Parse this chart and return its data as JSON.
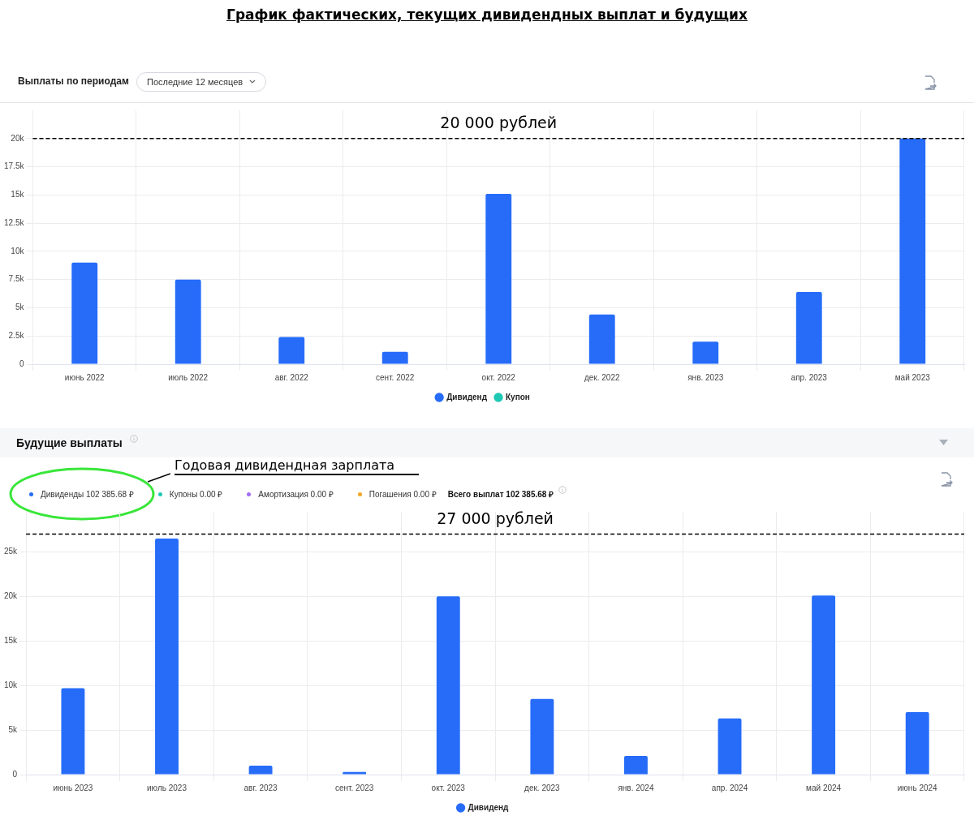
{
  "chart_data": [
    {
      "type": "bar",
      "title": "График фактических, текущих дивидендных выплат и будущих",
      "subtitle": "Выплаты по периодам",
      "annotations": [
        "Последние 12 месяцев"
      ],
      "categories": [
        "июнь 2022",
        "июль 2022",
        "авг. 2022",
        "сент. 2022",
        "окт. 2022",
        "дек. 2022",
        "янв. 2023",
        "апр. 2023",
        "май 2023"
      ],
      "series": [
        {
          "name": "Дивиденд",
          "color": "#266cf9",
          "values": [
            9000,
            7500,
            2400,
            1100,
            15100,
            4400,
            2000,
            6400,
            20000
          ]
        },
        {
          "name": "Купон",
          "color": "#1ec8b4",
          "values": [
            null,
            null,
            null,
            null,
            null,
            null,
            null,
            null,
            null
          ]
        }
      ],
      "ylim": [
        0,
        22500
      ],
      "yticks": [
        0,
        {
          "value": 2500,
          "label": "2.5k"
        },
        {
          "value": 5000,
          "label": "5k"
        },
        {
          "value": 7500,
          "label": "7.5k"
        },
        {
          "value": 10000,
          "label": "10k"
        },
        {
          "value": 12500,
          "label": "12.5k"
        },
        {
          "value": 15000,
          "label": "15k"
        },
        {
          "value": 17500,
          "label": "17.5k"
        },
        {
          "value": 20000,
          "label": "20k"
        }
      ],
      "ref_lines": [
        {
          "axis": "y",
          "value": 20000,
          "label": "20 000 рублей",
          "color": "#000000",
          "line_style": "dashed"
        }
      ],
      "grid": true,
      "legend": "bottom"
    },
    {
      "type": "bar",
      "title": "Будущие выплаты",
      "annotations": [
        "Годовая дивидендная зарплата",
        "Дивиденды 102 385.68 ₽",
        "Купоны 0.00 ₽",
        "Амортизация 0.00 ₽",
        "Погашения 0.00 ₽",
        "Всего выплат 102 385.68 ₽"
      ],
      "categories": [
        "июнь 2023",
        "июль 2023",
        "авг. 2023",
        "сент. 2023",
        "окт. 2023",
        "дек. 2023",
        "янв. 2024",
        "апр. 2024",
        "май 2024",
        "июнь 2024"
      ],
      "series": [
        {
          "name": "Дивиденд",
          "color": "#266cf9",
          "values": [
            9700,
            26500,
            1000,
            300,
            20000,
            8500,
            2100,
            6300,
            20100,
            7000
          ]
        }
      ],
      "ylim": [
        0,
        29500
      ],
      "yticks": [
        0,
        {
          "value": 5000,
          "label": "5k"
        },
        {
          "value": 10000,
          "label": "10k"
        },
        {
          "value": 15000,
          "label": "15k"
        },
        {
          "value": 20000,
          "label": "20k"
        },
        {
          "value": 25000,
          "label": "25k"
        }
      ],
      "ref_lines": [
        {
          "axis": "y",
          "value": 27000,
          "label": "27 000 рублей",
          "color": "#000000",
          "line_style": "dashed"
        }
      ],
      "grid": true,
      "legend": "bottom"
    }
  ]
}
